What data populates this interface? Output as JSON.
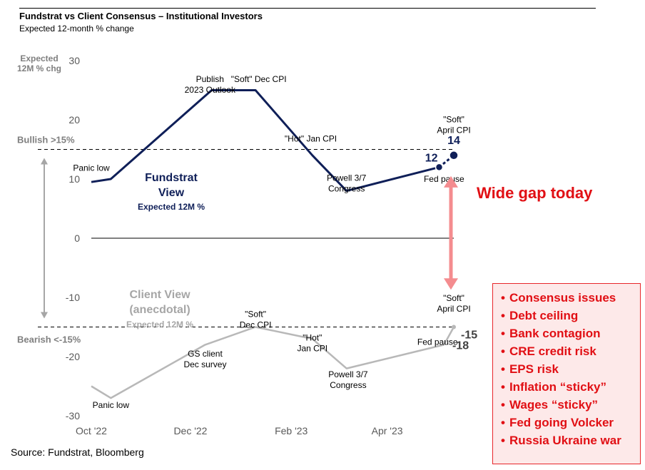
{
  "title": "Fundstrat vs Client Consensus – Institutional Investors",
  "subtitle": "Expected 12-month % change",
  "source": "Source: Fundstrat, Bloomberg",
  "chart_data": {
    "type": "line",
    "ylabel": "Expected\n12M % chg",
    "ylim": [
      -30,
      30
    ],
    "yticks": [
      30,
      20,
      10,
      0,
      -10,
      -20,
      -30
    ],
    "xtick_labels": [
      "Oct '22",
      "Dec '22",
      "Feb '23",
      "Apr '23"
    ],
    "xtick_dates": [
      "2022-10-01",
      "2022-12-01",
      "2023-02-01",
      "2023-04-01"
    ],
    "xlim": [
      "2022-10-01",
      "2023-05-12"
    ],
    "series": [
      {
        "label_lines": [
          "Fundstrat",
          "View"
        ],
        "sublabel": "Expected 12M %",
        "color": "#0f1f58",
        "points": [
          {
            "x": "2022-10-01",
            "y": 9.5
          },
          {
            "x": "2022-10-13",
            "y": 10
          },
          {
            "x": "2022-12-14",
            "y": 25
          },
          {
            "x": "2023-01-10",
            "y": 25
          },
          {
            "x": "2023-02-14",
            "y": 14
          },
          {
            "x": "2023-03-07",
            "y": 8
          },
          {
            "x": "2023-05-03",
            "y": 12
          }
        ],
        "end_point": {
          "x": "2023-05-12",
          "y": 14
        }
      },
      {
        "label_lines": [
          "Client View",
          "(anecdotal)"
        ],
        "sublabel": "Expected 12M %",
        "color": "#b8b8b8",
        "points": [
          {
            "x": "2022-10-01",
            "y": -25
          },
          {
            "x": "2022-10-13",
            "y": -27
          },
          {
            "x": "2022-12-10",
            "y": -18
          },
          {
            "x": "2023-01-10",
            "y": -15
          },
          {
            "x": "2023-02-14",
            "y": -17
          },
          {
            "x": "2023-03-07",
            "y": -22
          },
          {
            "x": "2023-05-06",
            "y": -18
          }
        ],
        "end_point": {
          "x": "2023-05-12",
          "y": -15
        }
      }
    ],
    "reference_lines": [
      {
        "label": "Bullish >15%",
        "y": 15
      },
      {
        "label": "Bearish <-15%",
        "y": -15
      }
    ],
    "value_labels": {
      "fundstrat_prev": "12",
      "fundstrat_end": "14",
      "client_prev": "-18",
      "client_end": "-15"
    },
    "annotations": [
      {
        "lines": [
          "Panic low"
        ],
        "x": "2022-10-01",
        "y": 11.4
      },
      {
        "lines": [
          "Publish",
          "2023 Outlook"
        ],
        "x": "2022-12-13",
        "y": 26.4
      },
      {
        "lines": [
          "\"Soft\" Dec  CPI"
        ],
        "x": "2023-01-12",
        "y": 26.4
      },
      {
        "lines": [
          "\"Hot\" Jan CPI"
        ],
        "x": "2023-02-13",
        "y": 16.3
      },
      {
        "lines": [
          "Powell 3/7",
          "Congress"
        ],
        "x": "2023-03-07",
        "y": 9.7
      },
      {
        "lines": [
          "\"Soft\"",
          "April CPI"
        ],
        "x": "2023-05-12",
        "y": 19.6
      },
      {
        "lines": [
          "Fed pause"
        ],
        "x": "2023-05-06",
        "y": 9.5
      },
      {
        "lines": [
          "Panic low"
        ],
        "x": "2022-10-13",
        "y": -28.7
      },
      {
        "lines": [
          "GS client",
          "Dec survey"
        ],
        "x": "2022-12-10",
        "y": -20
      },
      {
        "lines": [
          "\"Soft\"",
          "Dec  CPI"
        ],
        "x": "2023-01-10",
        "y": -13.3
      },
      {
        "lines": [
          "\"Hot\"",
          "Jan CPI"
        ],
        "x": "2023-02-14",
        "y": -17.3
      },
      {
        "lines": [
          "Powell 3/7",
          "Congress"
        ],
        "x": "2023-03-08",
        "y": -23.5
      },
      {
        "lines": [
          "\"Soft\"",
          "April CPI"
        ],
        "x": "2023-05-12",
        "y": -10.6
      },
      {
        "lines": [
          "Fed pause"
        ],
        "x": "2023-05-02",
        "y": -18
      }
    ],
    "gap_label": "Wide gap today",
    "gap_color": "#f48c8f",
    "callout_color": "#e10f14",
    "callout_items": [
      "Consensus issues",
      "Debt ceiling",
      "Bank contagion",
      "CRE credit risk",
      "EPS risk",
      "Inflation “sticky”",
      "Wages “sticky”",
      "Fed going Volcker",
      "Russia Ukraine war"
    ]
  }
}
